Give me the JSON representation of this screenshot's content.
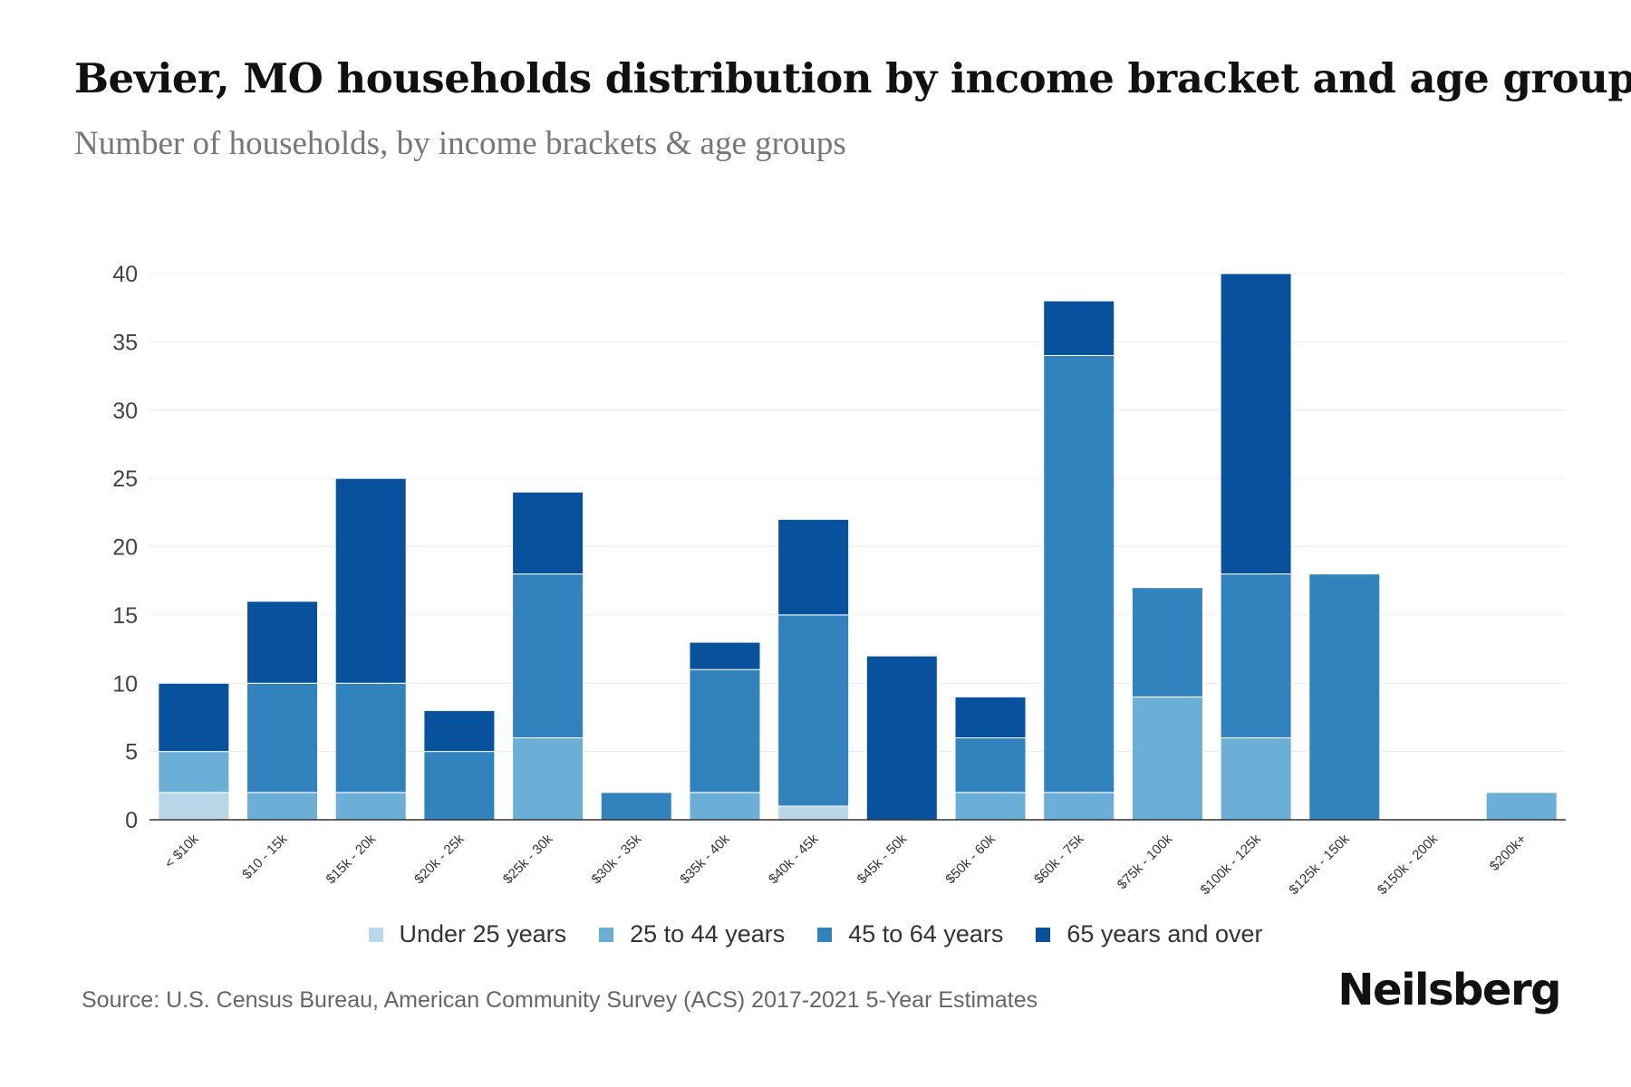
{
  "header": {
    "title": "Bevier, MO households distribution by income bracket and age group",
    "subtitle": "Number of households, by income brackets & age groups"
  },
  "footer": {
    "source": "Source: U.S. Census Bureau, American Community Survey (ACS) 2017-2021 5-Year Estimates",
    "brand": "Neilsberg"
  },
  "chart_data": {
    "type": "bar",
    "stacked": true,
    "title": "Bevier, MO households distribution by income bracket and age group",
    "subtitle": "Number of households, by income brackets & age groups",
    "xlabel": "",
    "ylabel": "",
    "ylim": [
      0,
      40
    ],
    "yticks": [
      0,
      5,
      10,
      15,
      20,
      25,
      30,
      35,
      40
    ],
    "grid": true,
    "legend_position": "bottom",
    "categories": [
      "< $10k",
      "$10 - 15k",
      "$15k - 20k",
      "$20k - 25k",
      "$25k - 30k",
      "$30k - 35k",
      "$35k - 40k",
      "$40k - 45k",
      "$45k - 50k",
      "$50k - 60k",
      "$60k - 75k",
      "$75k - 100k",
      "$100k - 125k",
      "$125k - 150k",
      "$150k - 200k",
      "$200k+"
    ],
    "series": [
      {
        "name": "Under 25 years",
        "color": "#b9d7e8",
        "values": [
          2,
          0,
          0,
          0,
          0,
          0,
          0,
          1,
          0,
          0,
          0,
          0,
          0,
          0,
          0,
          0
        ]
      },
      {
        "name": "25 to 44 years",
        "color": "#6baed6",
        "values": [
          3,
          2,
          2,
          0,
          6,
          0,
          2,
          0,
          0,
          2,
          2,
          9,
          6,
          0,
          0,
          2
        ]
      },
      {
        "name": "45 to 64 years",
        "color": "#3182bd",
        "values": [
          0,
          8,
          8,
          5,
          12,
          2,
          9,
          14,
          0,
          4,
          32,
          8,
          12,
          18,
          0,
          0
        ]
      },
      {
        "name": "65 years and over",
        "color": "#08519c",
        "values": [
          5,
          6,
          15,
          3,
          6,
          0,
          2,
          7,
          12,
          3,
          4,
          0,
          22,
          0,
          0,
          0
        ]
      }
    ]
  }
}
